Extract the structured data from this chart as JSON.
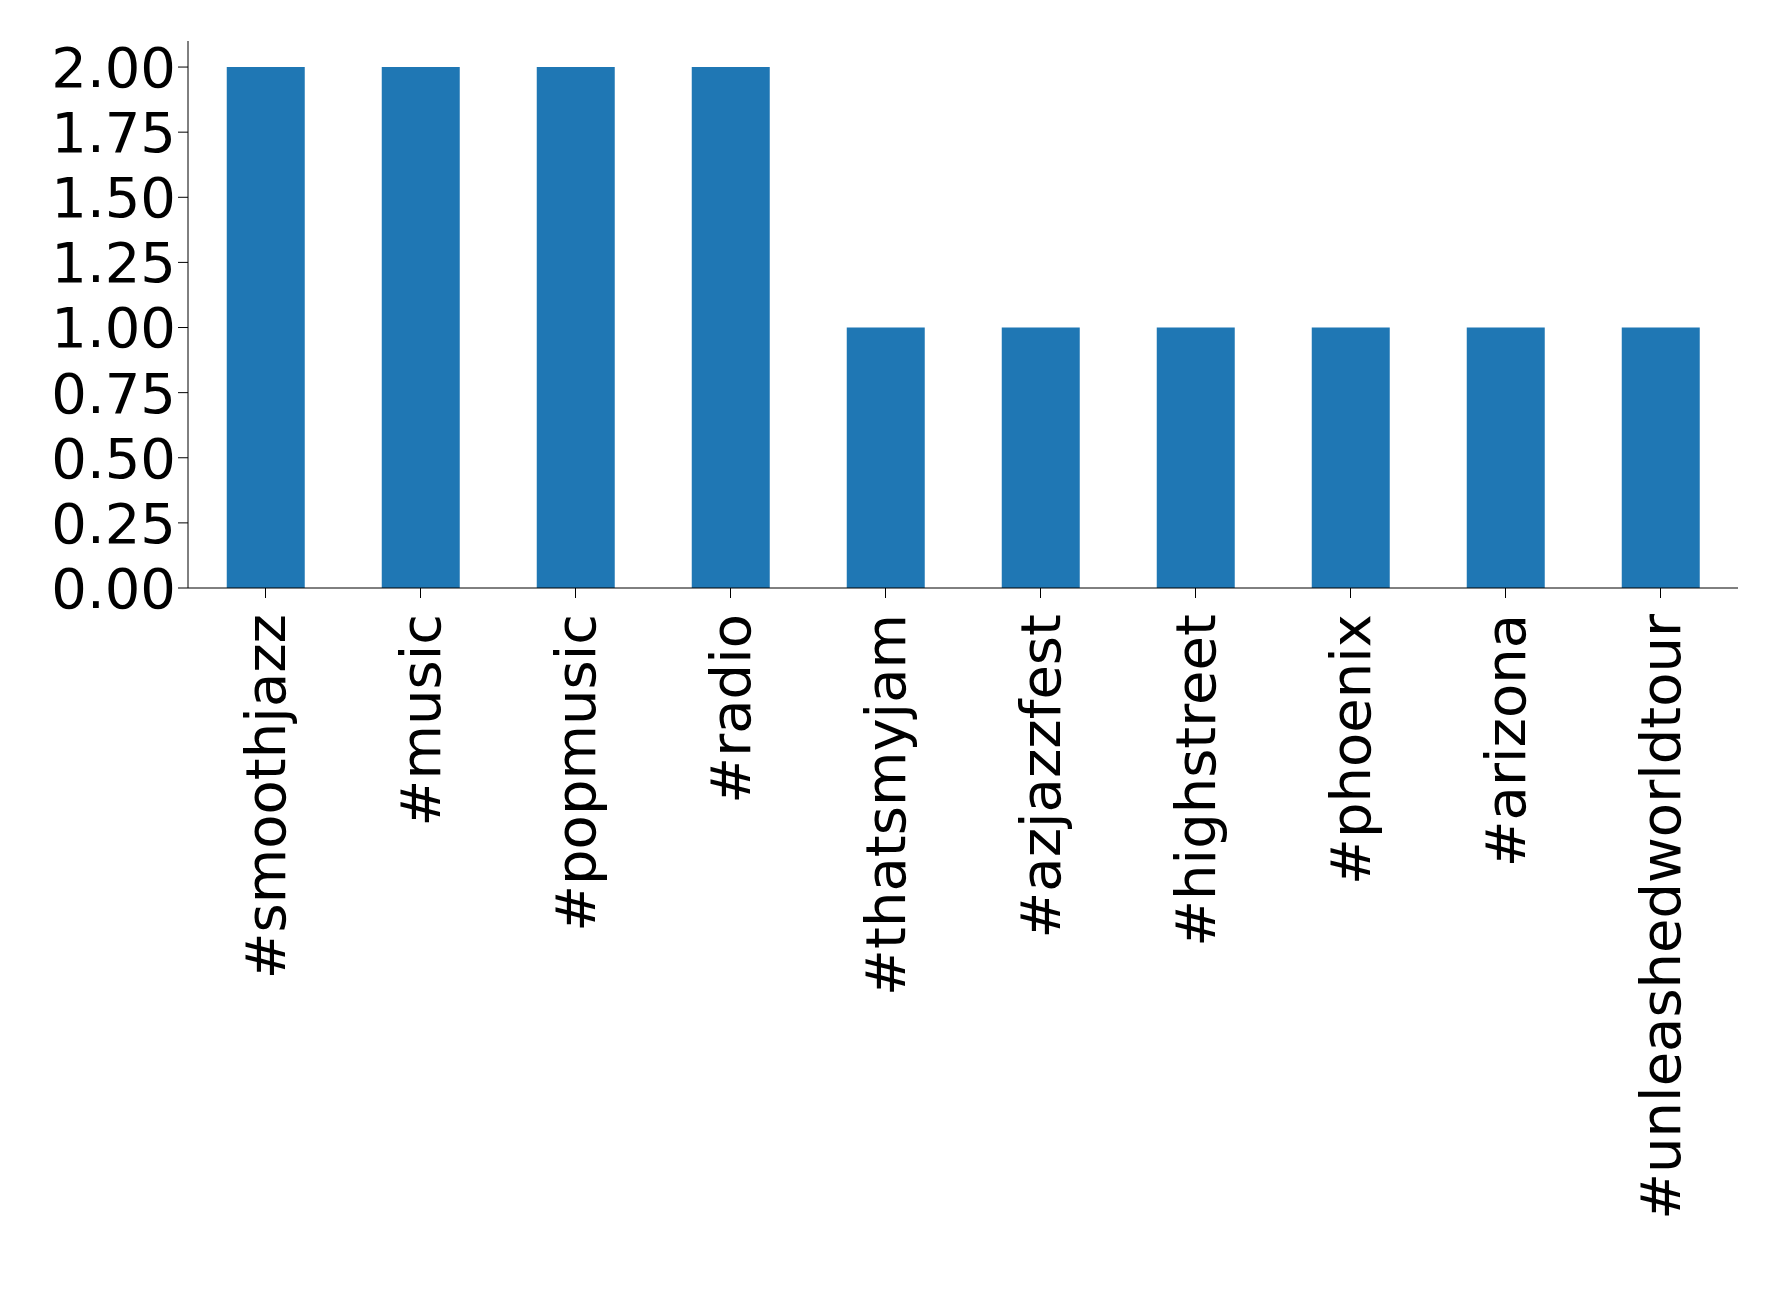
{
  "chart_data": {
    "type": "bar",
    "categories": [
      "#smoothjazz",
      "#music",
      "#popmusic",
      "#radio",
      "#thatsmyjam",
      "#azjazzfest",
      "#highstreet",
      "#phoenix",
      "#arizona",
      "#unleashedworldtour"
    ],
    "values": [
      2,
      2,
      2,
      2,
      1,
      1,
      1,
      1,
      1,
      1
    ],
    "color": "#1f77b4",
    "ylim": [
      0,
      2.1
    ],
    "yticks": [
      {
        "value": 0,
        "label": "0.00"
      },
      {
        "value": 0.25,
        "label": "0.25"
      },
      {
        "value": 0.5,
        "label": "0.50"
      },
      {
        "value": 0.75,
        "label": "0.75"
      },
      {
        "value": 1,
        "label": "1.00"
      },
      {
        "value": 1.25,
        "label": "1.25"
      },
      {
        "value": 1.5,
        "label": "1.50"
      },
      {
        "value": 1.75,
        "label": "1.75"
      },
      {
        "value": 2,
        "label": "2.00"
      }
    ],
    "grid": false,
    "legend": false
  }
}
